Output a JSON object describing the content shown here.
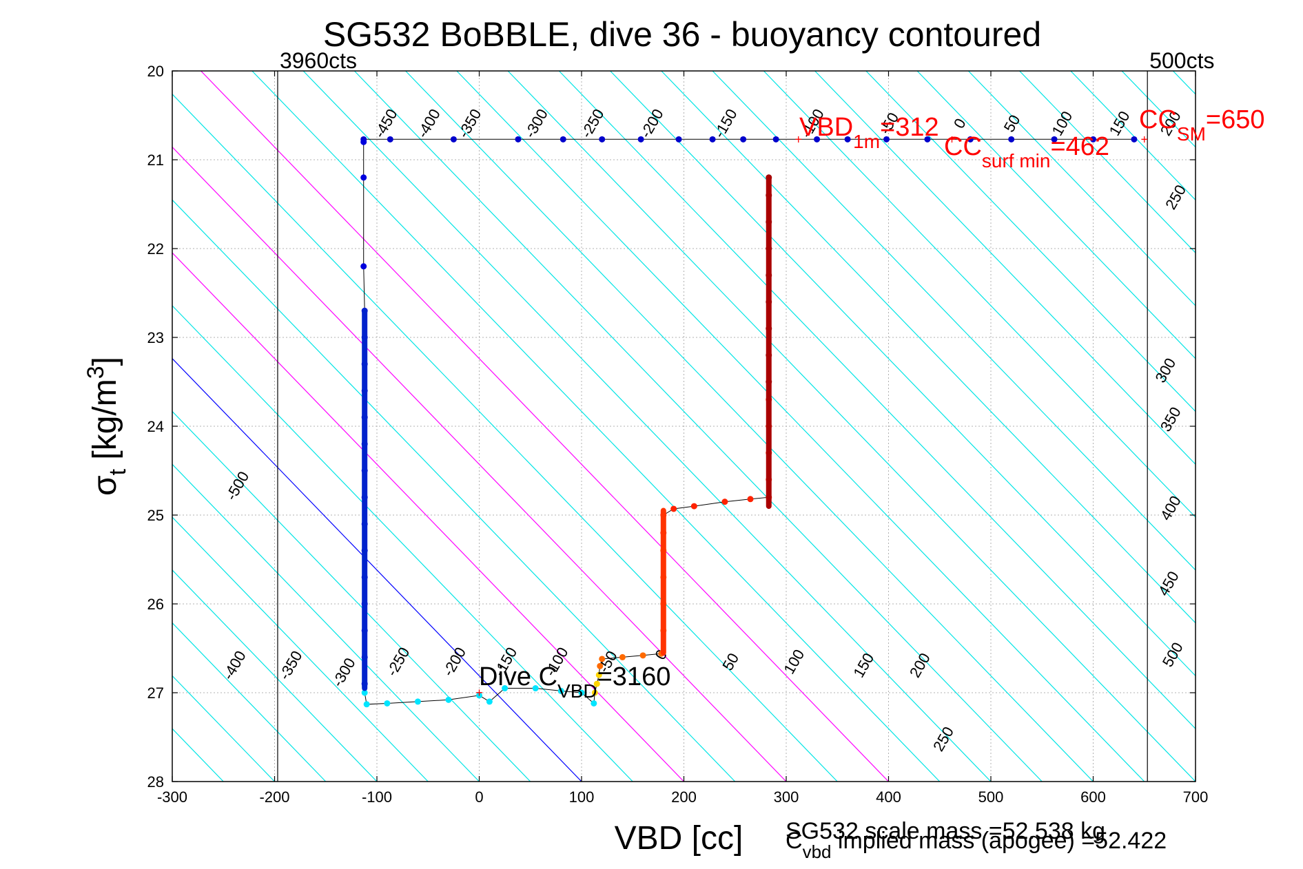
{
  "chart_data": {
    "type": "scatter",
    "title": "SG532 BoBBLE, dive 36 - buoyancy contoured",
    "xlabel": "VBD [cc]",
    "ylabel_main": "σ",
    "ylabel_sub": "t",
    "ylabel_unit": " [kg/m",
    "ylabel_sup": "3",
    "ylabel_close": "]",
    "xlim": [
      -300,
      700
    ],
    "ylim": [
      20,
      28
    ],
    "y_reversed": true,
    "grid": true,
    "x_ticks": [
      "-300",
      "-200",
      "-100",
      "0",
      "100",
      "200",
      "300",
      "400",
      "500",
      "600",
      "700"
    ],
    "y_ticks": [
      "20",
      "21",
      "22",
      "23",
      "24",
      "25",
      "26",
      "27",
      "28"
    ],
    "vertical_markers": [
      {
        "x": -197,
        "label": "3960cts"
      },
      {
        "x": 653,
        "label": "500cts"
      }
    ],
    "buoyancy_contour_color": "#00e5e5",
    "labeled_contour_color": "#0000ff",
    "magenta_contour_color": "#ff00ff",
    "contour_labels_top": [
      "-450",
      "-400",
      "-350",
      "-300",
      "-250",
      "-200",
      "-150",
      "-100",
      "-50",
      "0",
      "50",
      "100",
      "150",
      "200"
    ],
    "contour_labels_right": [
      "250",
      "300",
      "350",
      "400",
      "450",
      "500"
    ],
    "contour_labels_left": [
      "-500"
    ],
    "contour_labels_bottom": [
      "-400",
      "-350",
      "-300",
      "-250",
      "-200",
      "-150",
      "-100",
      "-50",
      "0",
      "50",
      "100",
      "150",
      "200",
      "250"
    ],
    "series": [
      {
        "segment": "surface_dive_start",
        "color": "#0000cc",
        "points": [
          [
            640,
            20.77
          ],
          [
            600,
            20.77
          ],
          [
            562,
            20.77
          ],
          [
            520,
            20.77
          ],
          [
            480,
            20.77
          ],
          [
            438,
            20.77
          ],
          [
            398,
            20.77
          ],
          [
            360,
            20.77
          ],
          [
            330,
            20.77
          ],
          [
            290,
            20.77
          ],
          [
            258,
            20.77
          ],
          [
            228,
            20.77
          ],
          [
            195,
            20.77
          ],
          [
            158,
            20.77
          ],
          [
            120,
            20.77
          ],
          [
            82,
            20.77
          ],
          [
            38,
            20.77
          ],
          [
            -25,
            20.77
          ],
          [
            -87,
            20.77
          ],
          [
            -113,
            20.77
          ]
        ]
      },
      {
        "segment": "descent",
        "color": "#0000dd",
        "points": [
          [
            -113,
            20.8
          ],
          [
            -113,
            21.2
          ],
          [
            -113,
            22.2
          ],
          [
            -112,
            22.7
          ],
          [
            -112,
            23.0
          ],
          [
            -112,
            23.3
          ],
          [
            -112,
            23.6
          ],
          [
            -112,
            23.9
          ],
          [
            -112,
            24.2
          ],
          [
            -112,
            24.5
          ],
          [
            -112,
            24.8
          ],
          [
            -112,
            25.1
          ],
          [
            -112,
            25.4
          ],
          [
            -112,
            25.7
          ],
          [
            -112,
            26.0
          ],
          [
            -112,
            26.3
          ],
          [
            -112,
            26.6
          ],
          [
            -112,
            26.9
          ]
        ]
      },
      {
        "segment": "deep",
        "color": "#00e5ff",
        "points": [
          [
            -112,
            27.0
          ],
          [
            -110,
            27.13
          ],
          [
            -90,
            27.12
          ],
          [
            -60,
            27.1
          ],
          [
            -30,
            27.08
          ],
          [
            0,
            27.03
          ],
          [
            10,
            27.1
          ],
          [
            25,
            26.95
          ],
          [
            55,
            26.95
          ],
          [
            80,
            26.98
          ],
          [
            100,
            27.0
          ],
          [
            112,
            27.12
          ]
        ]
      },
      {
        "segment": "apogee",
        "color": "#ffd500",
        "points": [
          [
            113,
            27.0
          ],
          [
            115,
            26.9
          ],
          [
            117,
            26.8
          ]
        ]
      },
      {
        "segment": "ascent_low",
        "color": "#ff6a00",
        "points": [
          [
            118,
            26.7
          ],
          [
            120,
            26.62
          ],
          [
            140,
            26.6
          ],
          [
            160,
            26.58
          ],
          [
            178,
            26.56
          ],
          [
            180,
            26.3
          ],
          [
            180,
            26.0
          ],
          [
            180,
            25.7
          ],
          [
            180,
            25.4
          ]
        ]
      },
      {
        "segment": "ascent_mid",
        "color": "#ff2200",
        "points": [
          [
            180,
            25.2
          ],
          [
            180,
            25.0
          ],
          [
            190,
            24.93
          ],
          [
            210,
            24.9
          ],
          [
            240,
            24.85
          ],
          [
            265,
            24.82
          ],
          [
            283,
            24.8
          ],
          [
            283,
            24.6
          ],
          [
            283,
            24.3
          ],
          [
            283,
            24.0
          ],
          [
            283,
            23.7
          ]
        ]
      },
      {
        "segment": "ascent_top",
        "color": "#990000",
        "points": [
          [
            283,
            23.5
          ],
          [
            283,
            23.2
          ],
          [
            283,
            22.9
          ],
          [
            283,
            22.6
          ],
          [
            283,
            22.3
          ],
          [
            283,
            22.0
          ],
          [
            283,
            21.7
          ],
          [
            283,
            21.4
          ],
          [
            283,
            21.2
          ]
        ]
      }
    ],
    "annotations": {
      "vbd_1m": {
        "main": "VBD",
        "sub": "1m",
        "rest": "=312",
        "color": "#ff0000"
      },
      "cc_surf_min": {
        "main": "CC",
        "sub": "surf min",
        "rest": "=462",
        "color": "#ff0000"
      },
      "cc_sm": {
        "main": "CC",
        "sub": "SM",
        "rest": "=650",
        "color": "#ff0000"
      },
      "dive_c_vbd": {
        "main": "Dive C",
        "sub": "VBD",
        "rest": "=3160",
        "color": "#000000"
      }
    },
    "footer": {
      "scale_mass": "SG532 scale mass =52.538 kg",
      "implied_main": "C",
      "implied_sub": "vbd",
      "implied_rest": " implied mass (apogee) =52.422"
    }
  }
}
